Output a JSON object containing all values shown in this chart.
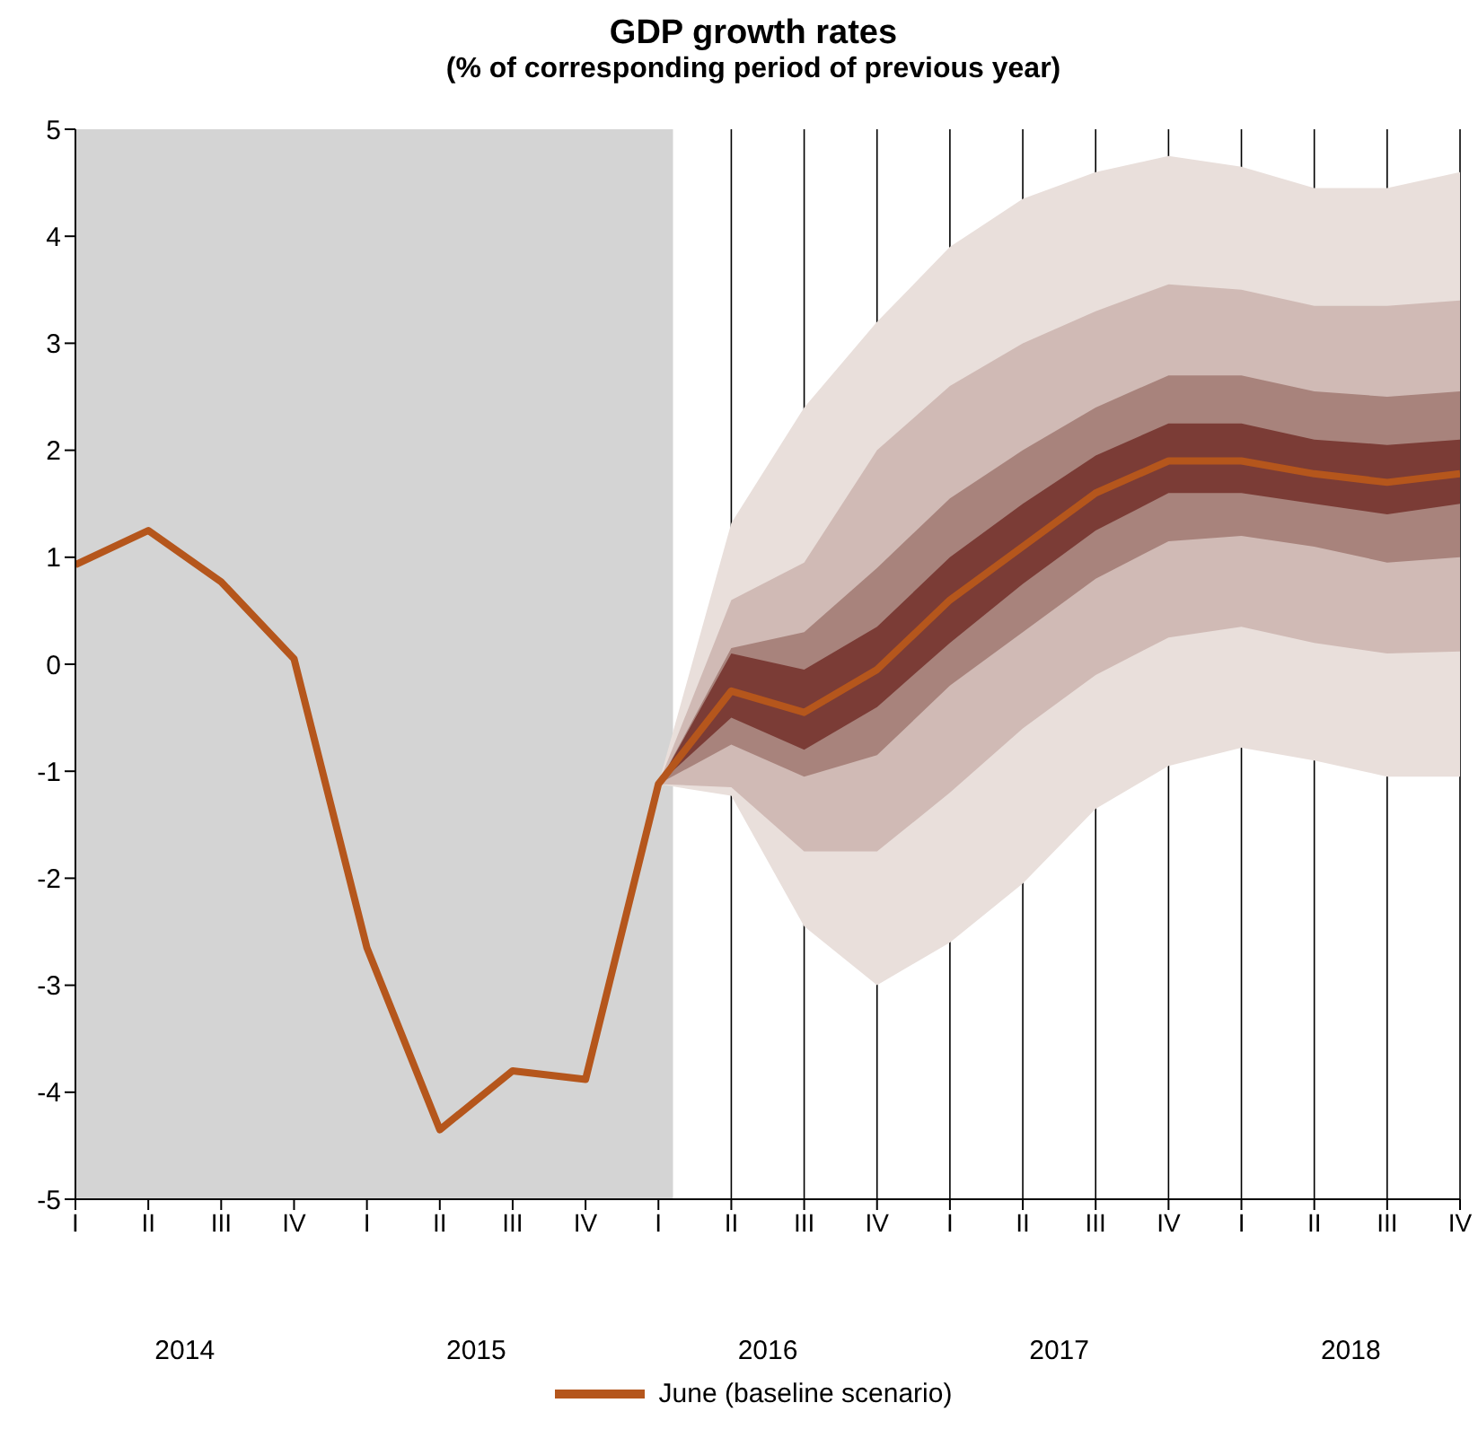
{
  "chart_data": {
    "type": "line",
    "title": "GDP growth rates",
    "subtitle": "(% of corresponding period of previous year)",
    "categories": [
      "I",
      "II",
      "III",
      "IV",
      "I",
      "II",
      "III",
      "IV",
      "I",
      "II",
      "III",
      "IV",
      "I",
      "II",
      "III",
      "IV",
      "I",
      "II",
      "III",
      "IV"
    ],
    "annotations": [
      "2014",
      "2015",
      "2016",
      "2017",
      "2018"
    ],
    "series": [
      {
        "type": "line",
        "color": "#e9dfdb",
        "values": [
          null,
          null,
          null,
          null,
          null,
          null,
          null,
          null,
          null,
          null,
          null,
          null,
          null,
          null,
          null,
          null,
          null,
          null,
          null,
          null
        ],
        "lower": [
          null,
          null,
          null,
          null,
          null,
          null,
          null,
          null,
          -1.12,
          -1.23,
          -2.45,
          -3.0,
          -2.6,
          -2.05,
          -1.35,
          -0.95,
          -0.78,
          -0.9,
          -1.05,
          -1.05
        ],
        "upper": [
          null,
          null,
          null,
          null,
          null,
          null,
          null,
          null,
          -1.12,
          1.32,
          2.4,
          3.2,
          3.9,
          4.35,
          4.6,
          4.75,
          4.65,
          4.45,
          4.45,
          4.6
        ]
      },
      {
        "type": "line",
        "color": "#d0bab5",
        "values": [
          null,
          null,
          null,
          null,
          null,
          null,
          null,
          null,
          null,
          null,
          null,
          null,
          null,
          null,
          null,
          null,
          null,
          null,
          null,
          null
        ],
        "lower": [
          null,
          null,
          null,
          null,
          null,
          null,
          null,
          null,
          -1.12,
          -1.15,
          -1.75,
          -1.75,
          -1.2,
          -0.6,
          -0.1,
          0.25,
          0.35,
          0.2,
          0.1,
          0.12
        ],
        "upper": [
          null,
          null,
          null,
          null,
          null,
          null,
          null,
          null,
          -1.12,
          0.6,
          0.95,
          2.0,
          2.6,
          3.0,
          3.3,
          3.55,
          3.5,
          3.35,
          3.35,
          3.4
        ]
      },
      {
        "type": "line",
        "color": "#a8837c",
        "values": [
          null,
          null,
          null,
          null,
          null,
          null,
          null,
          null,
          null,
          null,
          null,
          null,
          null,
          null,
          null,
          null,
          null,
          null,
          null,
          null
        ],
        "lower": [
          null,
          null,
          null,
          null,
          null,
          null,
          null,
          null,
          -1.12,
          -0.75,
          -1.05,
          -0.85,
          -0.2,
          0.3,
          0.8,
          1.15,
          1.2,
          1.1,
          0.95,
          1.0
        ],
        "upper": [
          null,
          null,
          null,
          null,
          null,
          null,
          null,
          null,
          -1.12,
          0.15,
          0.3,
          0.9,
          1.55,
          2.0,
          2.4,
          2.7,
          2.7,
          2.55,
          2.5,
          2.55
        ]
      },
      {
        "type": "line",
        "name": "June (baseline scenario)",
        "color": "#b5561c",
        "values": [
          0.93,
          1.25,
          0.77,
          0.05,
          -2.65,
          -4.35,
          -3.8,
          -3.88,
          -1.12,
          -0.25,
          -0.45,
          -0.05,
          0.6,
          1.1,
          1.6,
          1.9,
          1.9,
          1.78,
          1.7,
          1.78
        ],
        "lower": [
          null,
          null,
          null,
          null,
          null,
          null,
          null,
          null,
          -1.12,
          -0.5,
          -0.8,
          -0.4,
          0.2,
          0.75,
          1.25,
          1.6,
          1.6,
          1.5,
          1.4,
          1.5
        ],
        "upper": [
          null,
          null,
          null,
          null,
          null,
          null,
          null,
          null,
          -1.12,
          0.1,
          -0.05,
          0.35,
          1.0,
          1.5,
          1.95,
          2.25,
          2.25,
          2.1,
          2.05,
          2.1
        ]
      }
    ],
    "ylim": [
      -5,
      5
    ],
    "yticks": [
      -5,
      -4,
      -3,
      -2,
      -1,
      0,
      1,
      2,
      3,
      4,
      5
    ],
    "grid": "x",
    "legend": "bottom"
  }
}
